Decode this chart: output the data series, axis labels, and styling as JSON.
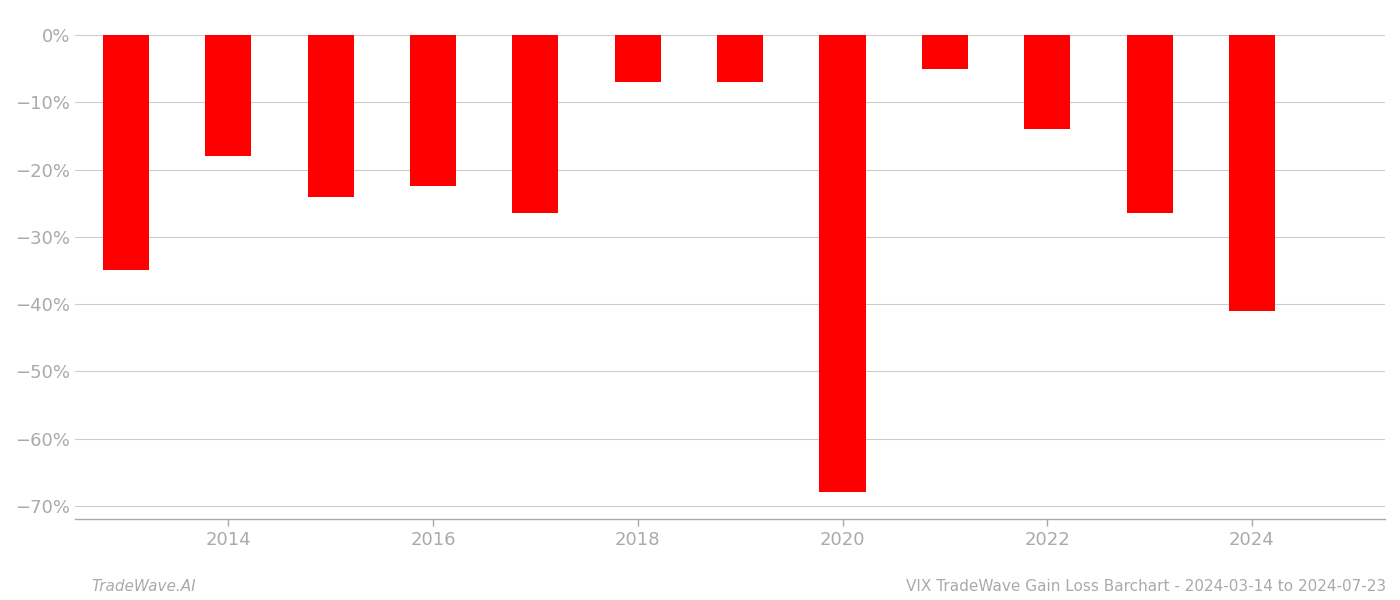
{
  "years": [
    2013,
    2014,
    2015,
    2016,
    2017,
    2018,
    2019,
    2020,
    2021,
    2022,
    2023,
    2024
  ],
  "values": [
    -35.0,
    -18.0,
    -24.0,
    -22.5,
    -26.5,
    -7.0,
    -7.0,
    -68.0,
    -5.0,
    -14.0,
    -26.5,
    -41.0
  ],
  "bar_color": "#ff0000",
  "bar_width": 0.45,
  "ylim": [
    -72,
    3
  ],
  "yticks": [
    0,
    -10,
    -20,
    -30,
    -40,
    -50,
    -60,
    -70
  ],
  "ytick_labels": [
    "0%",
    "−10%",
    "−20%",
    "−30%",
    "−40%",
    "−50%",
    "−60%",
    "−70%"
  ],
  "xtick_positions": [
    2014,
    2016,
    2018,
    2020,
    2022,
    2024
  ],
  "xlim_min": 2012.5,
  "xlim_max": 2025.3,
  "grid_color": "#cccccc",
  "axis_color": "#aaaaaa",
  "text_color": "#aaaaaa",
  "background_color": "#ffffff",
  "footer_left": "TradeWave.AI",
  "footer_right": "VIX TradeWave Gain Loss Barchart - 2024-03-14 to 2024-07-23",
  "figure_width": 14.0,
  "figure_height": 6.0,
  "dpi": 100
}
